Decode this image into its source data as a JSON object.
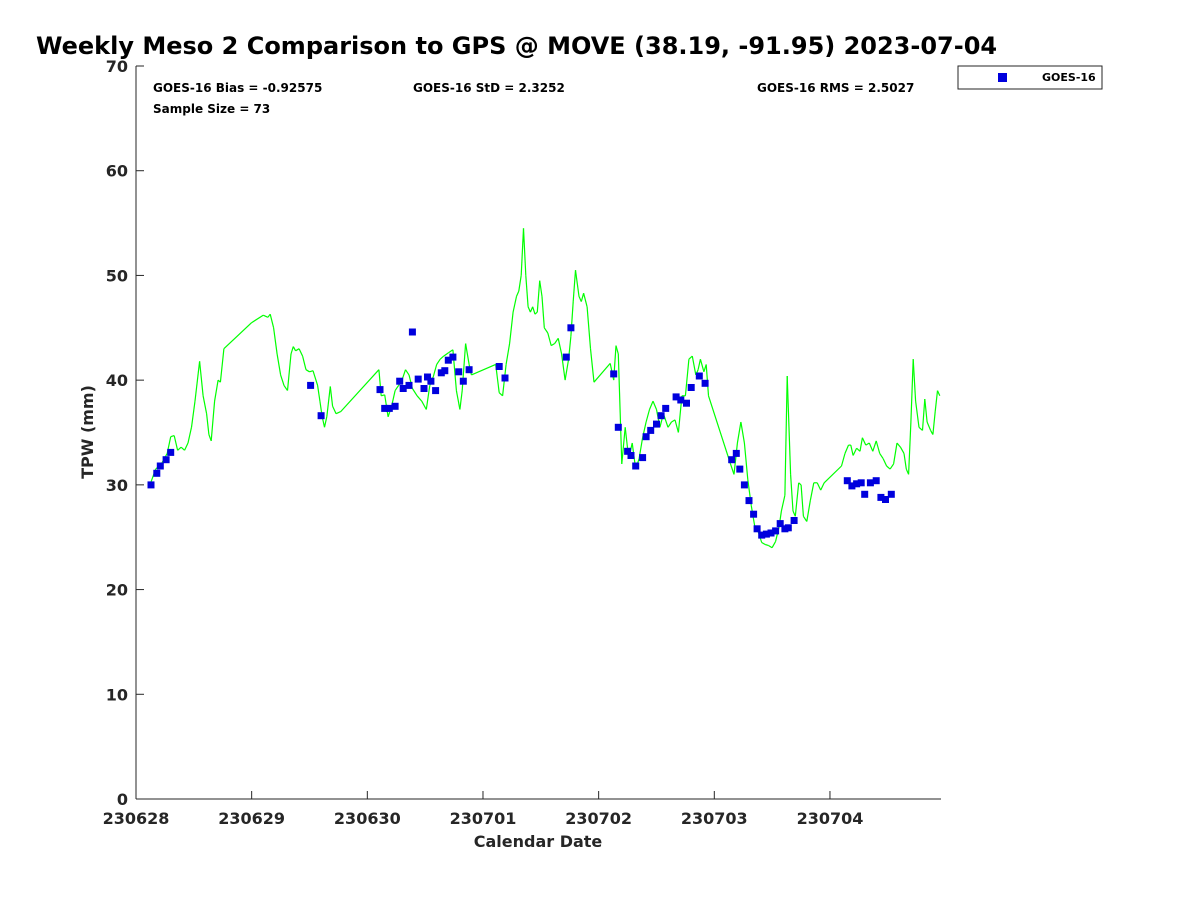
{
  "chart_data": {
    "type": "scatter",
    "title": "Weekly Meso 2 Comparison to GPS @ MOVE (38.19, -91.95) 2023-07-04",
    "xlabel": "Calendar Date",
    "ylabel": "TPW (mm)",
    "xlim": [
      0,
      6.96
    ],
    "ylim": [
      0,
      70
    ],
    "x_ticks": [
      {
        "value": 0,
        "label": "230628"
      },
      {
        "value": 1,
        "label": "230629"
      },
      {
        "value": 2,
        "label": "230630"
      },
      {
        "value": 3,
        "label": "230701"
      },
      {
        "value": 4,
        "label": "230702"
      },
      {
        "value": 5,
        "label": "230703"
      },
      {
        "value": 6,
        "label": "230704"
      }
    ],
    "y_ticks": [
      {
        "value": 0,
        "label": "0"
      },
      {
        "value": 10,
        "label": "10"
      },
      {
        "value": 20,
        "label": "20"
      },
      {
        "value": 30,
        "label": "30"
      },
      {
        "value": 40,
        "label": "40"
      },
      {
        "value": 50,
        "label": "50"
      },
      {
        "value": 60,
        "label": "60"
      },
      {
        "value": 70,
        "label": "70"
      }
    ],
    "grid": false,
    "legend_position": "top-right, outside plot",
    "stats": {
      "bias": "GOES-16 Bias = -0.92575",
      "std": "GOES-16 StD = 2.3252",
      "rms": "GOES-16 RMS = 2.5027",
      "sample": "Sample Size = 73"
    },
    "series": [
      {
        "name": "GOES-16",
        "kind": "scatter",
        "color": "#0000dd",
        "points": [
          [
            0.13,
            30.0
          ],
          [
            0.18,
            31.1
          ],
          [
            0.21,
            31.8
          ],
          [
            0.26,
            32.4
          ],
          [
            0.3,
            33.1
          ],
          [
            1.51,
            39.5
          ],
          [
            1.6,
            36.6
          ],
          [
            2.11,
            39.1
          ],
          [
            2.15,
            37.3
          ],
          [
            2.19,
            37.3
          ],
          [
            2.24,
            37.5
          ],
          [
            2.28,
            39.9
          ],
          [
            2.31,
            39.2
          ],
          [
            2.36,
            39.5
          ],
          [
            2.39,
            44.6
          ],
          [
            2.44,
            40.1
          ],
          [
            2.49,
            39.2
          ],
          [
            2.52,
            40.3
          ],
          [
            2.55,
            39.9
          ],
          [
            2.59,
            39.0
          ],
          [
            2.64,
            40.7
          ],
          [
            2.67,
            40.9
          ],
          [
            2.7,
            41.9
          ],
          [
            2.74,
            42.2
          ],
          [
            2.79,
            40.8
          ],
          [
            2.83,
            39.9
          ],
          [
            2.88,
            41.0
          ],
          [
            3.14,
            41.3
          ],
          [
            3.19,
            40.2
          ],
          [
            3.72,
            42.2
          ],
          [
            3.76,
            45.0
          ],
          [
            4.13,
            40.6
          ],
          [
            4.17,
            35.5
          ],
          [
            4.25,
            33.2
          ],
          [
            4.28,
            32.8
          ],
          [
            4.32,
            31.8
          ],
          [
            4.38,
            32.6
          ],
          [
            4.41,
            34.6
          ],
          [
            4.45,
            35.2
          ],
          [
            4.5,
            35.8
          ],
          [
            4.54,
            36.6
          ],
          [
            4.58,
            37.3
          ],
          [
            4.67,
            38.4
          ],
          [
            4.71,
            38.1
          ],
          [
            4.76,
            37.8
          ],
          [
            4.8,
            39.3
          ],
          [
            4.87,
            40.4
          ],
          [
            4.92,
            39.7
          ],
          [
            5.15,
            32.4
          ],
          [
            5.19,
            33.0
          ],
          [
            5.22,
            31.5
          ],
          [
            5.26,
            30.0
          ],
          [
            5.3,
            28.5
          ],
          [
            5.34,
            27.2
          ],
          [
            5.37,
            25.8
          ],
          [
            5.41,
            25.2
          ],
          [
            5.45,
            25.3
          ],
          [
            5.49,
            25.4
          ],
          [
            5.53,
            25.6
          ],
          [
            5.57,
            26.3
          ],
          [
            5.61,
            25.8
          ],
          [
            5.64,
            25.9
          ],
          [
            5.69,
            26.6
          ],
          [
            6.15,
            30.4
          ],
          [
            6.19,
            29.9
          ],
          [
            6.23,
            30.1
          ],
          [
            6.27,
            30.2
          ],
          [
            6.3,
            29.1
          ],
          [
            6.35,
            30.2
          ],
          [
            6.4,
            30.4
          ],
          [
            6.44,
            28.8
          ],
          [
            6.48,
            28.6
          ],
          [
            6.53,
            29.1
          ]
        ]
      },
      {
        "kind": "line",
        "color": "#00ff00",
        "points": [
          [
            0.12,
            30.0
          ],
          [
            0.17,
            31.5
          ],
          [
            0.22,
            32.0
          ],
          [
            0.27,
            33.0
          ],
          [
            0.3,
            34.6
          ],
          [
            0.33,
            34.7
          ],
          [
            0.36,
            33.3
          ],
          [
            0.39,
            33.6
          ],
          [
            0.42,
            33.3
          ],
          [
            0.45,
            34.0
          ],
          [
            0.48,
            35.5
          ],
          [
            0.51,
            38.0
          ],
          [
            0.55,
            41.8
          ],
          [
            0.58,
            38.5
          ],
          [
            0.61,
            36.8
          ],
          [
            0.63,
            34.8
          ],
          [
            0.65,
            34.2
          ],
          [
            0.68,
            38.0
          ],
          [
            0.71,
            40.0
          ],
          [
            0.73,
            39.8
          ],
          [
            0.76,
            43.0
          ],
          [
            1.0,
            45.5
          ],
          [
            1.1,
            46.2
          ],
          [
            1.14,
            46.0
          ],
          [
            1.16,
            46.3
          ],
          [
            1.19,
            45.0
          ],
          [
            1.22,
            42.5
          ],
          [
            1.25,
            40.5
          ],
          [
            1.28,
            39.5
          ],
          [
            1.31,
            39.0
          ],
          [
            1.34,
            42.5
          ],
          [
            1.36,
            43.2
          ],
          [
            1.38,
            42.8
          ],
          [
            1.41,
            43.0
          ],
          [
            1.44,
            42.3
          ],
          [
            1.47,
            41.0
          ],
          [
            1.5,
            40.8
          ],
          [
            1.53,
            40.9
          ],
          [
            1.57,
            39.5
          ],
          [
            1.59,
            38.0
          ],
          [
            1.61,
            36.5
          ],
          [
            1.63,
            35.5
          ],
          [
            1.65,
            36.5
          ],
          [
            1.68,
            39.4
          ],
          [
            1.7,
            37.5
          ],
          [
            1.73,
            36.8
          ],
          [
            1.77,
            37.0
          ],
          [
            2.1,
            41.0
          ],
          [
            2.12,
            38.5
          ],
          [
            2.15,
            38.6
          ],
          [
            2.18,
            36.5
          ],
          [
            2.21,
            37.5
          ],
          [
            2.24,
            39.0
          ],
          [
            2.27,
            39.5
          ],
          [
            2.3,
            40.0
          ],
          [
            2.33,
            41.0
          ],
          [
            2.36,
            40.5
          ],
          [
            2.39,
            39.2
          ],
          [
            2.43,
            38.5
          ],
          [
            2.47,
            38.0
          ],
          [
            2.51,
            37.2
          ],
          [
            2.54,
            39.5
          ],
          [
            2.57,
            40.3
          ],
          [
            2.6,
            41.5
          ],
          [
            2.63,
            42.0
          ],
          [
            2.66,
            42.3
          ],
          [
            2.7,
            42.6
          ],
          [
            2.74,
            42.9
          ],
          [
            2.77,
            39.0
          ],
          [
            2.8,
            37.2
          ],
          [
            2.82,
            39.0
          ],
          [
            2.85,
            43.5
          ],
          [
            2.88,
            41.5
          ],
          [
            2.9,
            40.5
          ],
          [
            3.11,
            41.5
          ],
          [
            3.14,
            38.8
          ],
          [
            3.17,
            38.5
          ],
          [
            3.2,
            41.5
          ],
          [
            3.23,
            43.5
          ],
          [
            3.26,
            46.5
          ],
          [
            3.29,
            48.0
          ],
          [
            3.31,
            48.5
          ],
          [
            3.33,
            50.0
          ],
          [
            3.35,
            54.5
          ],
          [
            3.37,
            50.0
          ],
          [
            3.39,
            47.0
          ],
          [
            3.41,
            46.5
          ],
          [
            3.43,
            47.0
          ],
          [
            3.45,
            46.3
          ],
          [
            3.47,
            46.5
          ],
          [
            3.49,
            49.5
          ],
          [
            3.51,
            48.0
          ],
          [
            3.53,
            45.0
          ],
          [
            3.56,
            44.5
          ],
          [
            3.59,
            43.3
          ],
          [
            3.62,
            43.5
          ],
          [
            3.65,
            44.0
          ],
          [
            3.68,
            42.5
          ],
          [
            3.71,
            40.0
          ],
          [
            3.74,
            42.0
          ],
          [
            3.76,
            44.2
          ],
          [
            3.78,
            47.5
          ],
          [
            3.8,
            50.5
          ],
          [
            3.83,
            48.0
          ],
          [
            3.85,
            47.5
          ],
          [
            3.87,
            48.3
          ],
          [
            3.9,
            47.0
          ],
          [
            3.93,
            43.0
          ],
          [
            3.96,
            39.8
          ],
          [
            4.1,
            41.6
          ],
          [
            4.13,
            40.0
          ],
          [
            4.15,
            43.3
          ],
          [
            4.17,
            42.5
          ],
          [
            4.2,
            32.0
          ],
          [
            4.23,
            35.5
          ],
          [
            4.26,
            32.5
          ],
          [
            4.29,
            34.0
          ],
          [
            4.32,
            31.5
          ],
          [
            4.35,
            32.5
          ],
          [
            4.38,
            34.5
          ],
          [
            4.41,
            36.0
          ],
          [
            4.44,
            37.2
          ],
          [
            4.47,
            38.0
          ],
          [
            4.5,
            37.2
          ],
          [
            4.53,
            35.5
          ],
          [
            4.56,
            36.8
          ],
          [
            4.6,
            35.5
          ],
          [
            4.63,
            36.0
          ],
          [
            4.66,
            36.2
          ],
          [
            4.69,
            35.0
          ],
          [
            4.72,
            38.5
          ],
          [
            4.75,
            38.5
          ],
          [
            4.78,
            42.0
          ],
          [
            4.81,
            42.3
          ],
          [
            4.84,
            40.5
          ],
          [
            4.86,
            41.0
          ],
          [
            4.88,
            42.0
          ],
          [
            4.91,
            40.8
          ],
          [
            4.93,
            41.5
          ],
          [
            4.95,
            38.5
          ],
          [
            5.14,
            32.0
          ],
          [
            5.17,
            31.0
          ],
          [
            5.2,
            34.0
          ],
          [
            5.23,
            36.0
          ],
          [
            5.26,
            34.0
          ],
          [
            5.29,
            30.5
          ],
          [
            5.32,
            28.0
          ],
          [
            5.35,
            26.0
          ],
          [
            5.38,
            25.5
          ],
          [
            5.41,
            24.5
          ],
          [
            5.44,
            24.3
          ],
          [
            5.47,
            24.2
          ],
          [
            5.5,
            24.0
          ],
          [
            5.53,
            24.6
          ],
          [
            5.56,
            26.0
          ],
          [
            5.58,
            27.5
          ],
          [
            5.61,
            29.0
          ],
          [
            5.63,
            40.4
          ],
          [
            5.66,
            31.0
          ],
          [
            5.68,
            27.5
          ],
          [
            5.7,
            27.0
          ],
          [
            5.73,
            30.2
          ],
          [
            5.75,
            30.0
          ],
          [
            5.77,
            27.0
          ],
          [
            5.8,
            26.5
          ],
          [
            5.83,
            28.5
          ],
          [
            5.86,
            30.2
          ],
          [
            5.89,
            30.2
          ],
          [
            5.92,
            29.5
          ],
          [
            5.95,
            30.2
          ],
          [
            6.1,
            31.8
          ],
          [
            6.13,
            33.0
          ],
          [
            6.16,
            33.8
          ],
          [
            6.18,
            33.8
          ],
          [
            6.2,
            32.8
          ],
          [
            6.23,
            33.5
          ],
          [
            6.26,
            33.2
          ],
          [
            6.28,
            34.5
          ],
          [
            6.31,
            33.8
          ],
          [
            6.34,
            34.0
          ],
          [
            6.37,
            33.2
          ],
          [
            6.4,
            34.2
          ],
          [
            6.43,
            33.0
          ],
          [
            6.46,
            32.5
          ],
          [
            6.49,
            31.8
          ],
          [
            6.52,
            31.5
          ],
          [
            6.55,
            32.0
          ],
          [
            6.58,
            34.0
          ],
          [
            6.61,
            33.6
          ],
          [
            6.64,
            33.0
          ],
          [
            6.66,
            31.5
          ],
          [
            6.68,
            31.0
          ],
          [
            6.7,
            36.0
          ],
          [
            6.72,
            42.0
          ],
          [
            6.74,
            38.0
          ],
          [
            6.77,
            35.5
          ],
          [
            6.8,
            35.2
          ],
          [
            6.82,
            38.2
          ],
          [
            6.84,
            36.0
          ],
          [
            6.87,
            35.2
          ],
          [
            6.89,
            34.8
          ],
          [
            6.91,
            37.0
          ],
          [
            6.93,
            39.0
          ],
          [
            6.95,
            38.5
          ]
        ]
      }
    ]
  }
}
